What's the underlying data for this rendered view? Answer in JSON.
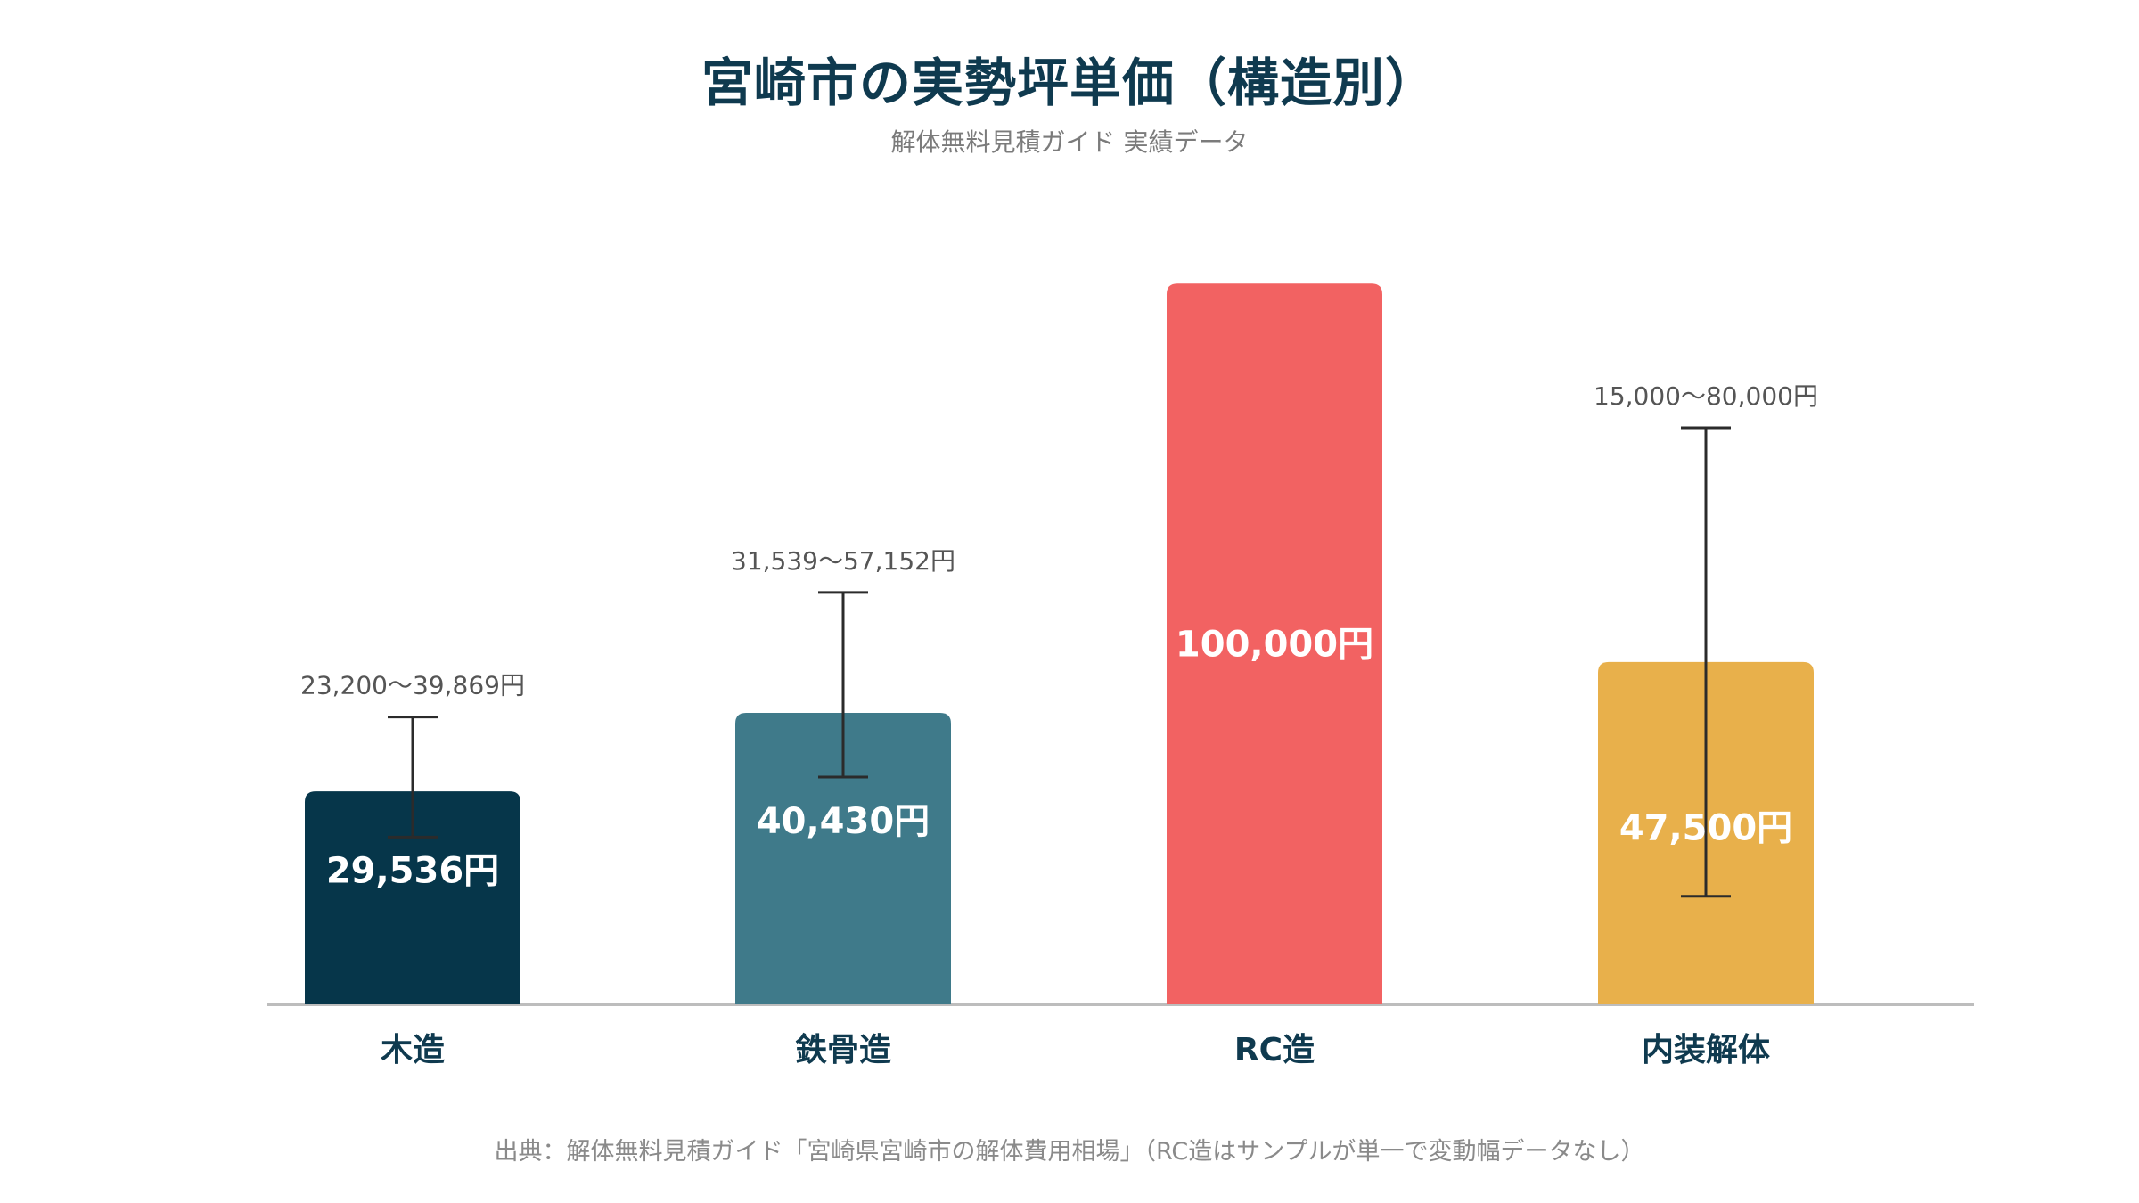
{
  "header": {
    "title": "宮崎市の実勢坪単価（構造別）",
    "subtitle": "解体無料見積ガイド 実績データ"
  },
  "footer": {
    "source": "出典：解体無料見積ガイド「宮崎県宮崎市の解体費用相場」（RC造はサンプルが単一で変動幅データなし）"
  },
  "chart_data": {
    "type": "bar",
    "title": "宮崎市の実勢坪単価（構造別）",
    "subtitle": "解体無料見積ガイド 実績データ",
    "categories": [
      "木造",
      "鉄骨造",
      "RC造",
      "内装解体"
    ],
    "values": [
      29536,
      40430,
      100000,
      47500
    ],
    "value_labels": [
      "29,536円",
      "40,430円",
      "100,000円",
      "47,500円"
    ],
    "ranges": [
      [
        23200,
        39869
      ],
      [
        31539,
        57152
      ],
      null,
      [
        15000,
        80000
      ]
    ],
    "range_labels": [
      "23,200〜39,869円",
      "31,539〜57,152円",
      "",
      "15,000〜80,000円"
    ],
    "colors": [
      "#06364a",
      "#3f7a8a",
      "#f26262",
      "#e8b04b"
    ],
    "ylim": [
      0,
      103500
    ],
    "grid": false,
    "legend": "none",
    "xlabel": "",
    "ylabel": ""
  }
}
